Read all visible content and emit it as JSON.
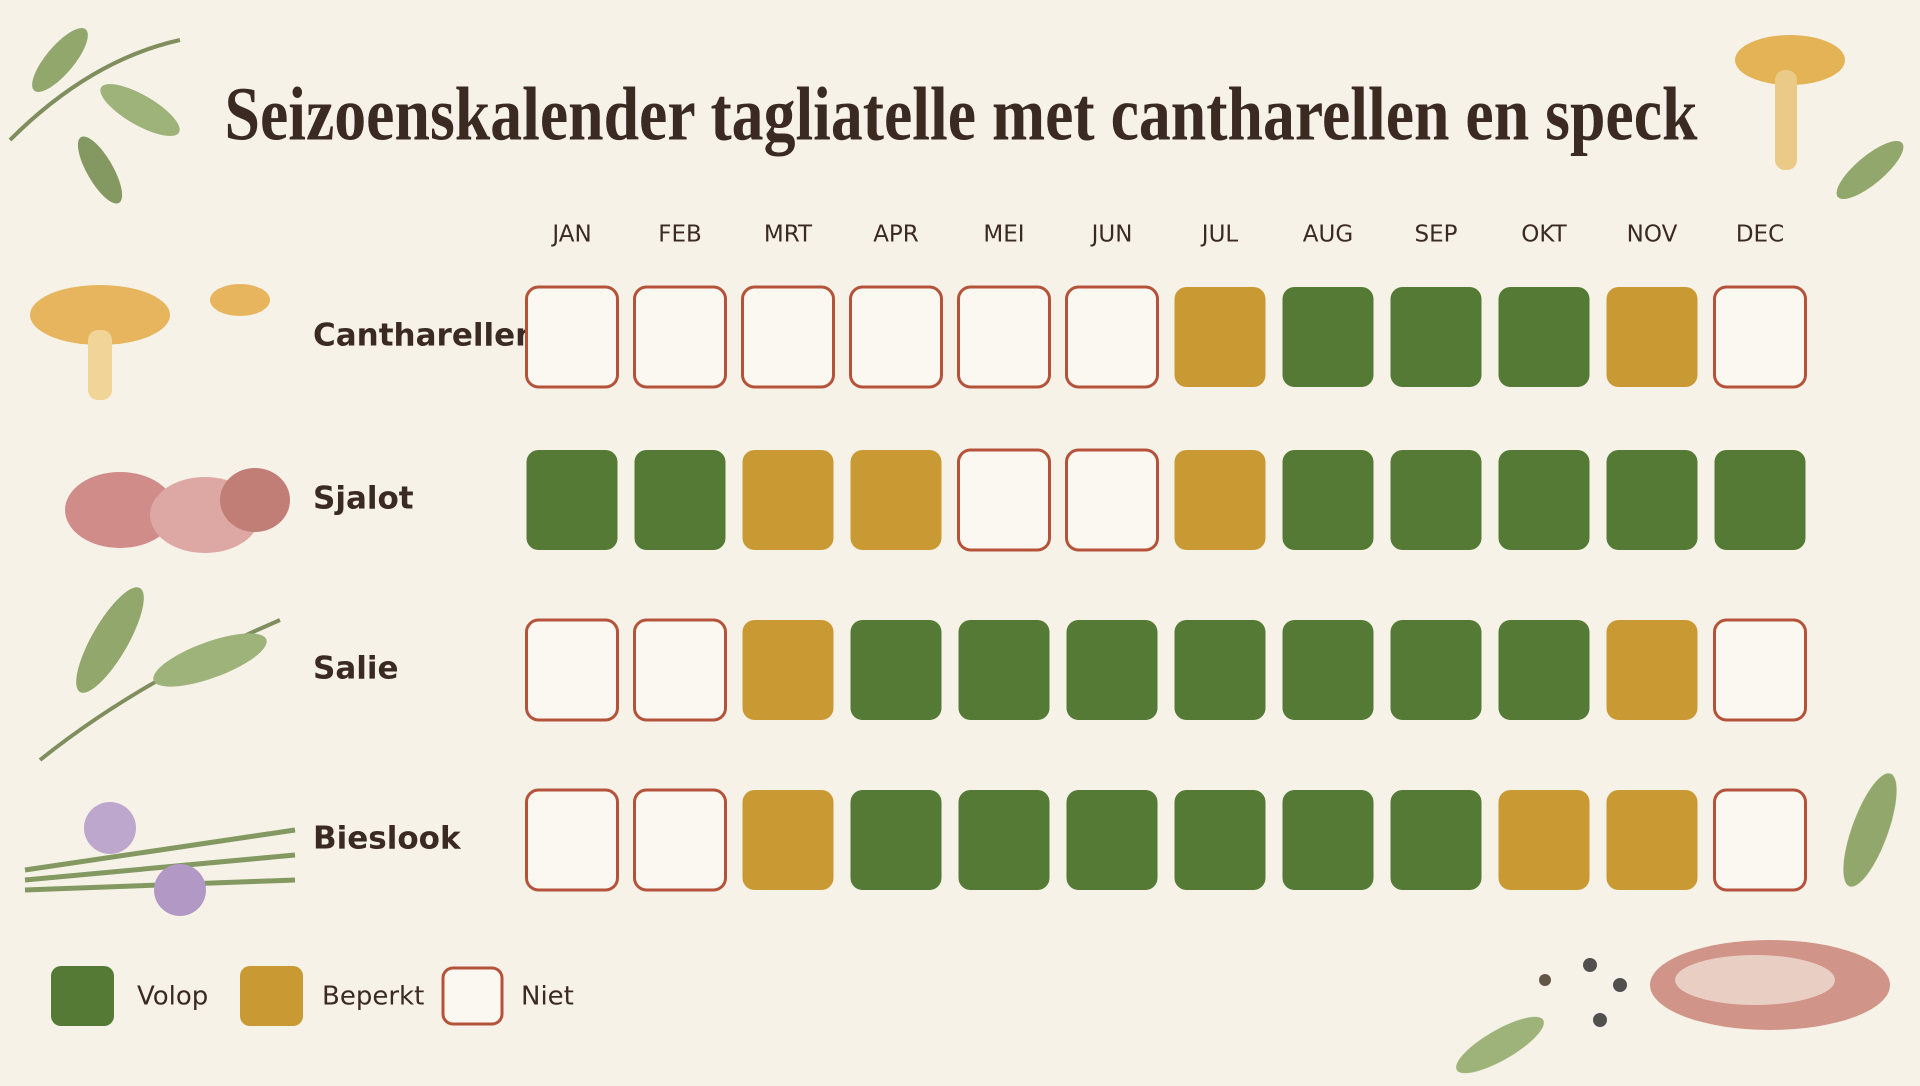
{
  "title": "Seizoenskalender tagliatelle met cantharellen en speck",
  "months": [
    "JAN",
    "FEB",
    "MRT",
    "APR",
    "MEI",
    "JUN",
    "JUL",
    "AUG",
    "SEP",
    "OKT",
    "NOV",
    "DEC"
  ],
  "legend": [
    {
      "label": "Volop",
      "color": "#547a35"
    },
    {
      "label": "Beperkt",
      "color": "#c99a34"
    },
    {
      "label": "Niet",
      "color": "#b5533a",
      "outline": true
    }
  ],
  "rows": [
    {
      "label": "Cantharellen",
      "cells": [
        2,
        2,
        2,
        2,
        2,
        2,
        1,
        0,
        0,
        0,
        1,
        2
      ]
    },
    {
      "label": "Sjalot",
      "cells": [
        0,
        0,
        1,
        1,
        2,
        2,
        1,
        0,
        0,
        0,
        0,
        0
      ]
    },
    {
      "label": "Salie",
      "cells": [
        2,
        2,
        1,
        0,
        0,
        0,
        0,
        0,
        0,
        0,
        1,
        2
      ]
    },
    {
      "label": "Bieslook",
      "cells": [
        2,
        2,
        1,
        0,
        0,
        0,
        0,
        0,
        0,
        1,
        1,
        2
      ]
    }
  ]
}
